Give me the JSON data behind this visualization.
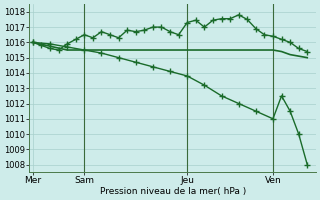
{
  "background_color": "#ceecea",
  "grid_color": "#a8d0cc",
  "line_color": "#1a6b2a",
  "marker_color": "#1a6b2a",
  "ylabel_text": "Pression niveau de la mer( hPa )",
  "ylim": [
    1007.5,
    1018.5
  ],
  "yticks": [
    1008,
    1009,
    1010,
    1011,
    1012,
    1013,
    1014,
    1015,
    1016,
    1017,
    1018
  ],
  "day_labels": [
    "Mer",
    "Sam",
    "Jeu",
    "Ven"
  ],
  "day_positions": [
    0,
    3,
    9,
    14
  ],
  "xlim": [
    -0.2,
    16.5
  ],
  "series1_x": [
    0,
    2,
    4,
    6,
    8,
    10,
    12,
    14,
    14.5,
    15,
    15.5,
    16
  ],
  "series1_y": [
    1016.0,
    1015.5,
    1015.5,
    1015.5,
    1015.5,
    1015.5,
    1015.5,
    1015.5,
    1015.4,
    1015.2,
    1015.1,
    1015.0
  ],
  "series2_x": [
    0,
    0.5,
    1,
    1.5,
    2,
    2.5,
    3,
    3.5,
    4,
    4.5,
    5,
    5.5,
    6,
    6.5,
    7,
    7.5,
    8,
    8.5,
    9,
    9.5,
    10,
    10.5,
    11,
    11.5,
    12,
    12.5,
    13,
    13.5,
    14,
    14.5,
    15,
    15.5,
    16
  ],
  "series2_y": [
    1016.0,
    1015.8,
    1015.6,
    1015.5,
    1015.9,
    1016.2,
    1016.5,
    1016.3,
    1016.7,
    1016.5,
    1016.3,
    1016.8,
    1016.7,
    1016.8,
    1017.0,
    1017.0,
    1016.7,
    1016.5,
    1017.3,
    1017.45,
    1017.0,
    1017.45,
    1017.55,
    1017.55,
    1017.8,
    1017.5,
    1016.9,
    1016.5,
    1016.4,
    1016.2,
    1016.0,
    1015.6,
    1015.4
  ],
  "series3_x": [
    0,
    1,
    2,
    3,
    4,
    5,
    6,
    7,
    8,
    9,
    10,
    11,
    12,
    13,
    14,
    14.5,
    15,
    15.5,
    16
  ],
  "series3_y": [
    1016.0,
    1015.9,
    1015.7,
    1015.5,
    1015.3,
    1015.0,
    1014.7,
    1014.4,
    1014.1,
    1013.8,
    1013.2,
    1012.5,
    1012.0,
    1011.5,
    1011.0,
    1012.5,
    1011.5,
    1010.0,
    1008.0
  ]
}
